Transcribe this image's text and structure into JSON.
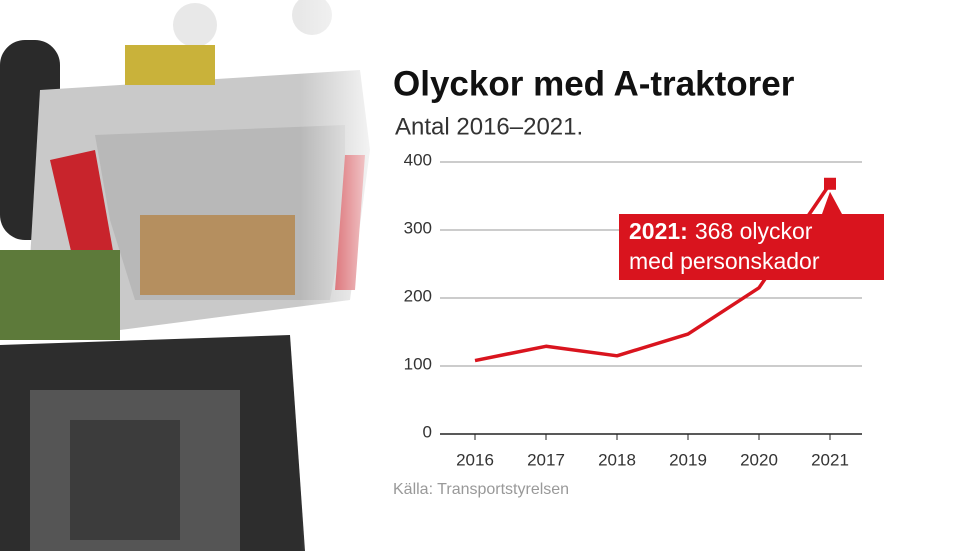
{
  "chart_data": {
    "type": "line",
    "title": "Olyckor med A-traktorer",
    "subtitle": "Antal 2016–2021.",
    "categories": [
      "2016",
      "2017",
      "2018",
      "2019",
      "2020",
      "2021"
    ],
    "values": [
      108,
      129,
      115,
      147,
      215,
      368
    ],
    "color": "#d9141e",
    "ylim": [
      0,
      400
    ],
    "yticks": [
      0,
      100,
      200,
      300,
      400
    ],
    "grid": true,
    "annotation": {
      "label": "2021:",
      "lines": [
        "368 olyckor",
        "med personskador"
      ]
    },
    "source": "Källa: Transportstyrelsen"
  }
}
